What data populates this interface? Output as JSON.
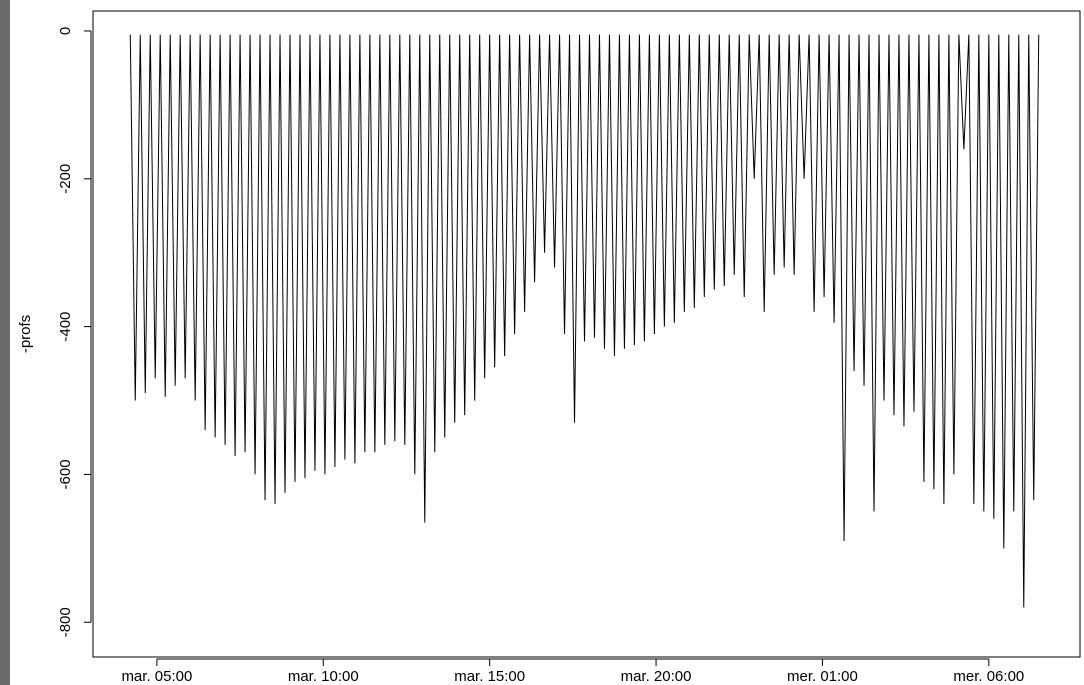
{
  "chart_data": {
    "type": "line",
    "y_label": "-profs",
    "color": "#000000",
    "xlim": [
      3.08,
      32.74
    ],
    "ylim": [
      -847,
      27
    ],
    "xticks": [
      {
        "value": 5,
        "label": "mar. 05:00"
      },
      {
        "value": 10,
        "label": "mar. 10:00"
      },
      {
        "value": 15,
        "label": "mar. 15:00"
      },
      {
        "value": 20,
        "label": "mar. 20:00"
      },
      {
        "value": 25,
        "label": "mer. 01:00"
      },
      {
        "value": 30,
        "label": "mer. 06:00"
      }
    ],
    "yticks": [
      0,
      -200,
      -400,
      -600,
      -800
    ],
    "x": [
      4.2,
      4.35,
      4.5,
      4.65,
      4.8,
      4.95,
      5.1,
      5.25,
      5.4,
      5.55,
      5.7,
      5.85,
      6,
      6.15,
      6.3,
      6.45,
      6.6,
      6.75,
      6.9,
      7.05,
      7.2,
      7.35,
      7.5,
      7.65,
      7.8,
      7.95,
      8.1,
      8.25,
      8.4,
      8.55,
      8.7,
      8.85,
      9,
      9.15,
      9.3,
      9.45,
      9.6,
      9.75,
      9.9,
      10.05,
      10.2,
      10.35,
      10.5,
      10.65,
      10.8,
      10.95,
      11.1,
      11.25,
      11.4,
      11.55,
      11.7,
      11.85,
      12,
      12.15,
      12.3,
      12.45,
      12.6,
      12.75,
      12.9,
      13.05,
      13.2,
      13.35,
      13.5,
      13.65,
      13.8,
      13.95,
      14.1,
      14.25,
      14.4,
      14.55,
      14.7,
      14.85,
      15,
      15.15,
      15.3,
      15.45,
      15.6,
      15.75,
      15.9,
      16.05,
      16.2,
      16.35,
      16.5,
      16.65,
      16.8,
      16.95,
      17.1,
      17.25,
      17.4,
      17.55,
      17.7,
      17.85,
      18,
      18.15,
      18.3,
      18.45,
      18.6,
      18.75,
      18.9,
      19.05,
      19.2,
      19.35,
      19.5,
      19.65,
      19.8,
      19.95,
      20.1,
      20.25,
      20.4,
      20.55,
      20.7,
      20.85,
      21,
      21.15,
      21.3,
      21.45,
      21.6,
      21.75,
      21.9,
      22.05,
      22.2,
      22.35,
      22.5,
      22.65,
      22.8,
      22.95,
      23.1,
      23.25,
      23.4,
      23.55,
      23.7,
      23.85,
      24,
      24.15,
      24.3,
      24.45,
      24.6,
      24.75,
      24.9,
      25.05,
      25.2,
      25.35,
      25.5,
      25.65,
      25.8,
      25.95,
      26.1,
      26.25,
      26.4,
      26.55,
      26.7,
      26.85,
      27,
      27.15,
      27.3,
      27.45,
      27.6,
      27.75,
      27.9,
      28.05,
      28.2,
      28.35,
      28.5,
      28.65,
      28.8,
      28.95,
      29.1,
      29.25,
      29.4,
      29.55,
      29.7,
      29.85,
      30,
      30.15,
      30.3,
      30.45,
      30.6,
      30.75,
      30.9,
      31.05,
      31.2,
      31.35,
      31.5
    ],
    "values": [
      -5,
      -500,
      -5,
      -490,
      -5,
      -470,
      -5,
      -495,
      -5,
      -480,
      -5,
      -470,
      -5,
      -500,
      -5,
      -540,
      -5,
      -550,
      -5,
      -560,
      -5,
      -575,
      -5,
      -570,
      -5,
      -600,
      -5,
      -635,
      -5,
      -640,
      -5,
      -625,
      -5,
      -610,
      -5,
      -605,
      -5,
      -595,
      -5,
      -600,
      -5,
      -590,
      -5,
      -580,
      -5,
      -585,
      -5,
      -570,
      -5,
      -570,
      -5,
      -560,
      -5,
      -555,
      -5,
      -560,
      -5,
      -600,
      -5,
      -665,
      -5,
      -570,
      -5,
      -550,
      -5,
      -530,
      -5,
      -520,
      -5,
      -500,
      -5,
      -470,
      -5,
      -455,
      -5,
      -440,
      -5,
      -410,
      -5,
      -380,
      -5,
      -340,
      -5,
      -300,
      -5,
      -320,
      -5,
      -410,
      -5,
      -530,
      -5,
      -420,
      -5,
      -415,
      -5,
      -430,
      -5,
      -440,
      -5,
      -430,
      -5,
      -425,
      -5,
      -420,
      -5,
      -410,
      -5,
      -400,
      -5,
      -395,
      -5,
      -380,
      -5,
      -375,
      -5,
      -360,
      -5,
      -350,
      -5,
      -345,
      -5,
      -330,
      -5,
      -360,
      -5,
      -200,
      -5,
      -380,
      -5,
      -330,
      -5,
      -320,
      -5,
      -330,
      -5,
      -200,
      -5,
      -380,
      -5,
      -360,
      -5,
      -395,
      -5,
      -690,
      -5,
      -460,
      -5,
      -480,
      -5,
      -650,
      -5,
      -500,
      -5,
      -520,
      -5,
      -535,
      -5,
      -515,
      -5,
      -610,
      -5,
      -620,
      -5,
      -640,
      -5,
      -600,
      -5,
      -160,
      -5,
      -640,
      -5,
      -650,
      -5,
      -660,
      -5,
      -700,
      -5,
      -650,
      -5,
      -780,
      -5,
      -635,
      -5
    ]
  }
}
